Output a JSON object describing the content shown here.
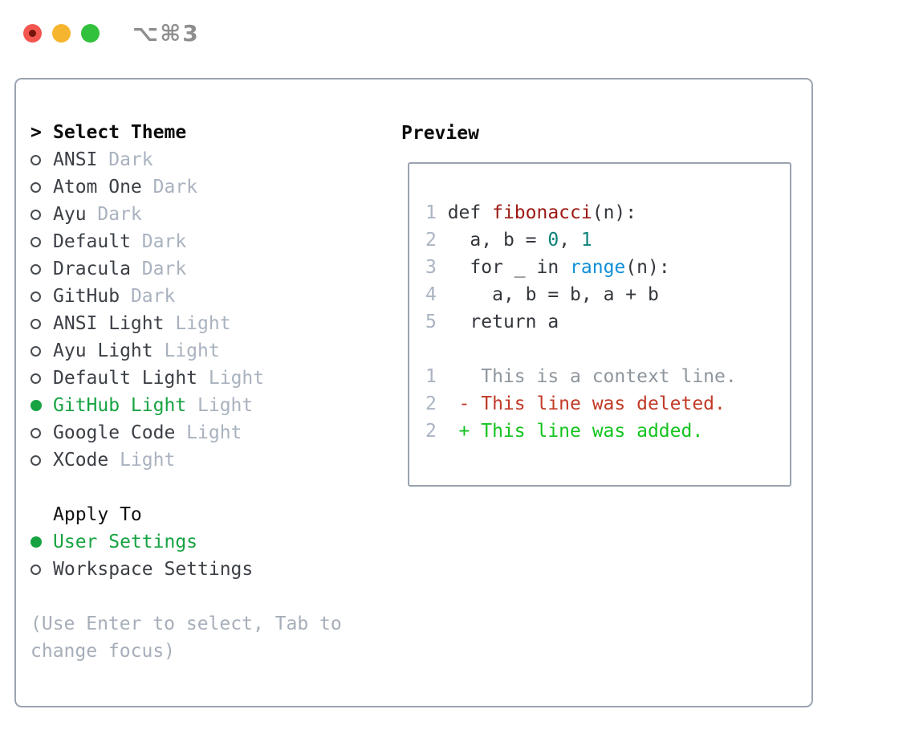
{
  "window": {
    "shortcut": "⌥⌘3",
    "traffic_lights": [
      "close",
      "minimize",
      "zoom"
    ]
  },
  "theme_picker": {
    "focus_marker": ">",
    "title": "Select Theme",
    "items": [
      {
        "name": "ANSI",
        "tag": "Dark",
        "selected": false
      },
      {
        "name": "Atom One",
        "tag": "Dark",
        "selected": false
      },
      {
        "name": "Ayu",
        "tag": "Dark",
        "selected": false
      },
      {
        "name": "Default",
        "tag": "Dark",
        "selected": false
      },
      {
        "name": "Dracula",
        "tag": "Dark",
        "selected": false
      },
      {
        "name": "GitHub",
        "tag": "Dark",
        "selected": false
      },
      {
        "name": "ANSI Light",
        "tag": "Light",
        "selected": false
      },
      {
        "name": "Ayu Light",
        "tag": "Light",
        "selected": false
      },
      {
        "name": "Default Light",
        "tag": "Light",
        "selected": false
      },
      {
        "name": "GitHub Light",
        "tag": "Light",
        "selected": true
      },
      {
        "name": "Google Code",
        "tag": "Light",
        "selected": false
      },
      {
        "name": "XCode",
        "tag": "Light",
        "selected": false
      }
    ]
  },
  "apply_to": {
    "title": "Apply To",
    "options": [
      {
        "label": "User Settings",
        "selected": true
      },
      {
        "label": "Workspace Settings",
        "selected": false
      }
    ]
  },
  "hint_lines": [
    "(Use Enter to select, Tab to",
    "change focus)"
  ],
  "preview": {
    "title": "Preview",
    "code_lines": [
      {
        "num": "1",
        "segments": [
          [
            "def ",
            "code"
          ],
          [
            "fibonacci",
            "function"
          ],
          [
            "(n):",
            "code"
          ]
        ]
      },
      {
        "num": "2",
        "segments": [
          [
            "  a, b = ",
            "code"
          ],
          [
            "0",
            "number"
          ],
          [
            ", ",
            "code"
          ],
          [
            "1",
            "number"
          ]
        ]
      },
      {
        "num": "3",
        "segments": [
          [
            "  for _ in ",
            "code"
          ],
          [
            "range",
            "builtin"
          ],
          [
            "(n):",
            "code"
          ]
        ]
      },
      {
        "num": "4",
        "segments": [
          [
            "    a, b = b, a + b",
            "code"
          ]
        ]
      },
      {
        "num": "5",
        "segments": [
          [
            "  return a",
            "code"
          ]
        ]
      }
    ],
    "diff_lines": [
      {
        "num": "1",
        "marker": " ",
        "text": "This is a context line.",
        "kind": "context"
      },
      {
        "num": "2",
        "marker": "-",
        "text": "This line was deleted.",
        "kind": "deleted"
      },
      {
        "num": "2",
        "marker": "+",
        "text": "This line was added.",
        "kind": "added"
      }
    ]
  },
  "colors": {
    "selected_green": "#17a342",
    "added_green": "#14c31e",
    "deleted_red": "#c13a28",
    "context_gray": "#8e969e",
    "function_red": "#9c1913",
    "number_teal": "#0c8178",
    "builtin_blue": "#0f8fd5",
    "code_dark": "#33373c",
    "item_dark": "#3c4046",
    "tag_gray": "#a9b2bf",
    "linenum_gray": "#aab3c2",
    "hint_gray": "#a6aeb9",
    "border_gray": "#9aa3b0",
    "header_black": "#0a0a0a",
    "shortcut_gray": "#8e8e8e",
    "radio_outline": "#494d52",
    "traffic_red": "#f2564f",
    "traffic_red_dot": "#75140c",
    "traffic_yellow": "#f6b52e",
    "traffic_green": "#32c13c"
  }
}
